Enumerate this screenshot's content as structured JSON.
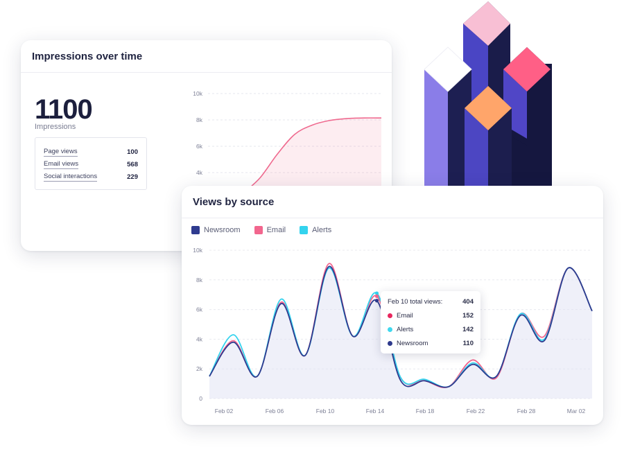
{
  "impressions_card": {
    "title": "Impressions over time",
    "total": "1100",
    "total_label": "Impressions",
    "stats": [
      {
        "label": "Page views",
        "value": "100"
      },
      {
        "label": "Email views",
        "value": "568"
      },
      {
        "label": "Social interactions",
        "value": "229"
      }
    ]
  },
  "views_card": {
    "title": "Views by source",
    "tooltip": {
      "title": "Feb 10 total views:",
      "total": "404",
      "rows": [
        {
          "label": "Email",
          "value": "152",
          "color": "#e8265e"
        },
        {
          "label": "Alerts",
          "value": "142",
          "color": "#3fd8ee"
        },
        {
          "label": "Newsroom",
          "value": "110",
          "color": "#2e3a8c"
        }
      ]
    }
  },
  "chart_data": [
    {
      "type": "area",
      "title": "Impressions over time",
      "y_ticks": [
        "10k",
        "8k",
        "6k",
        "4k"
      ],
      "ylim": [
        0,
        10000
      ],
      "series": [
        {
          "color": "#ef6a8f",
          "points": [
            [
              0,
              0
            ],
            [
              0.1,
              1200
            ],
            [
              0.2,
              2400
            ],
            [
              0.3,
              3600
            ],
            [
              0.4,
              5400
            ],
            [
              0.5,
              6900
            ],
            [
              0.6,
              7600
            ],
            [
              0.7,
              7950
            ],
            [
              0.8,
              8100
            ],
            [
              0.9,
              8150
            ],
            [
              1.0,
              8150
            ]
          ]
        }
      ]
    },
    {
      "type": "line",
      "title": "Views by source",
      "x_ticks": [
        "Feb 02",
        "Feb 06",
        "Feb 10",
        "Feb 14",
        "Feb 18",
        "Feb 22",
        "Feb 28",
        "Mar 02"
      ],
      "y_ticks": [
        "10k",
        "8k",
        "6k",
        "4k",
        "2k",
        "0"
      ],
      "ylim": [
        0,
        10000
      ],
      "legend": "top-left",
      "grid": true,
      "series": [
        {
          "name": "Email",
          "color": "#f2668e",
          "values": [
            1500,
            3900,
            1500,
            6500,
            2900,
            9100,
            4200,
            6900,
            1400,
            1200,
            800,
            2600,
            1400,
            5700,
            4200,
            8800,
            5900
          ]
        },
        {
          "name": "Alerts",
          "color": "#34d3ee",
          "values": [
            1500,
            4300,
            1500,
            6700,
            2900,
            8800,
            4200,
            7100,
            1400,
            1300,
            800,
            2400,
            1500,
            5700,
            4000,
            8800,
            5900
          ]
        },
        {
          "name": "Newsroom",
          "color": "#2f3b8f",
          "values": [
            1500,
            3800,
            1500,
            6400,
            2900,
            8900,
            4200,
            6600,
            1200,
            1200,
            800,
            2300,
            1500,
            5600,
            3900,
            8800,
            5900
          ]
        }
      ]
    }
  ]
}
